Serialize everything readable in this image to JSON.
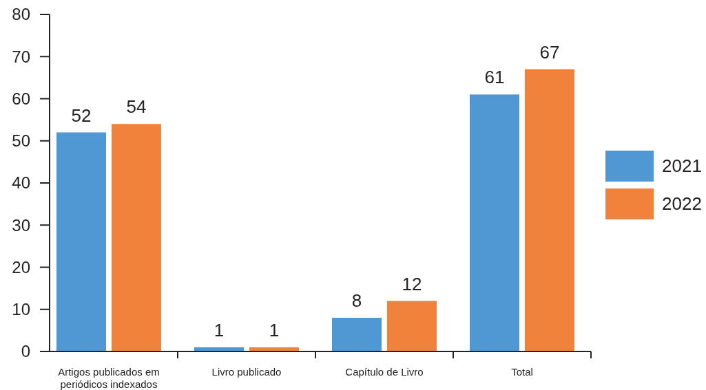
{
  "chart_data": {
    "type": "bar",
    "categories": [
      "Artigos publicados em periódicos indexados",
      "Livro publicado",
      "Capítulo de Livro",
      "Total"
    ],
    "series": [
      {
        "name": "2021",
        "color": "#4f98d3",
        "values": [
          52,
          1,
          8,
          61
        ]
      },
      {
        "name": "2022",
        "color": "#f0823c",
        "values": [
          54,
          1,
          12,
          67
        ]
      }
    ],
    "ylim": [
      0,
      80
    ],
    "yticks": [
      0,
      10,
      20,
      30,
      40,
      50,
      60,
      70,
      80
    ],
    "data_labels": true,
    "legend": "right",
    "grid": false
  }
}
